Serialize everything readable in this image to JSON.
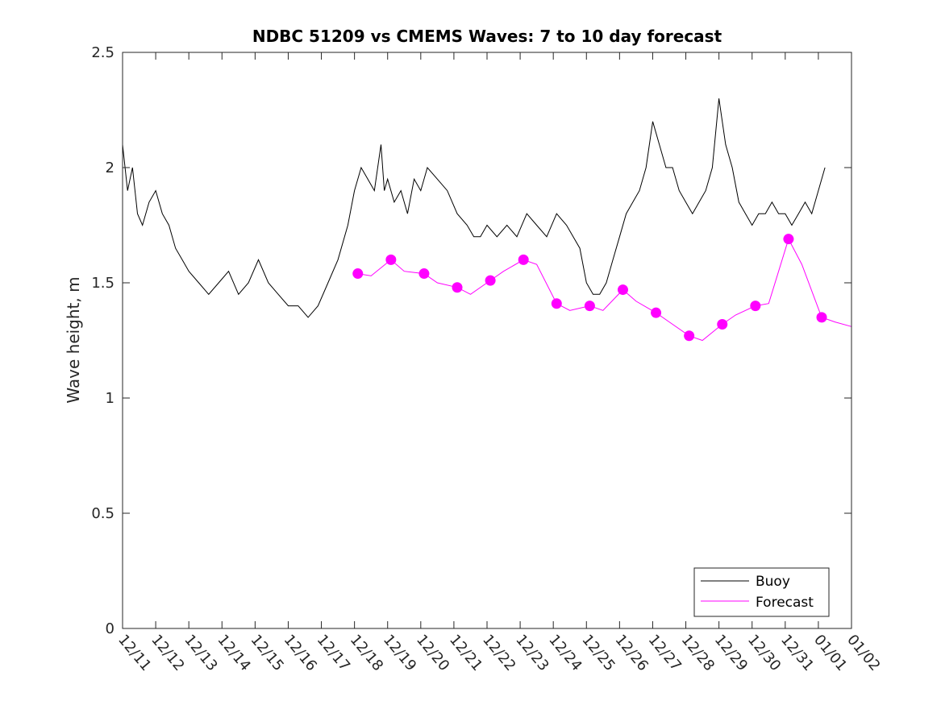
{
  "chart_data": {
    "type": "line",
    "title": "NDBC 51209 vs CMEMS Waves: 7 to 10 day forecast",
    "xlabel": "",
    "ylabel": "Wave height, m",
    "xlim": [
      0,
      22
    ],
    "ylim": [
      0,
      2.5
    ],
    "grid": false,
    "x_tick_labels": [
      "12/11",
      "12/12",
      "12/13",
      "12/14",
      "12/15",
      "12/16",
      "12/17",
      "12/18",
      "12/19",
      "12/20",
      "12/21",
      "12/22",
      "12/23",
      "12/24",
      "12/25",
      "12/26",
      "12/27",
      "12/28",
      "12/29",
      "12/30",
      "12/31",
      "01/01",
      "01/02"
    ],
    "y_ticks": [
      0,
      0.5,
      1,
      1.5,
      2,
      2.5
    ],
    "y_tick_labels": [
      "0",
      "0.5",
      "1",
      "1.5",
      "2",
      "2.5"
    ],
    "legend": {
      "placement": "bottom-right",
      "entries": [
        {
          "label": "Buoy",
          "color": "#000000"
        },
        {
          "label": "Forecast",
          "color": "#ff00ff"
        }
      ]
    },
    "series": [
      {
        "name": "Buoy",
        "color": "#000000",
        "x": [
          0,
          0.15,
          0.3,
          0.45,
          0.6,
          0.8,
          1.0,
          1.2,
          1.4,
          1.6,
          1.8,
          2.0,
          2.3,
          2.6,
          2.9,
          3.2,
          3.5,
          3.8,
          4.1,
          4.4,
          4.7,
          5.0,
          5.3,
          5.6,
          5.9,
          6.2,
          6.5,
          6.8,
          7.0,
          7.2,
          7.4,
          7.6,
          7.8,
          7.9,
          8.0,
          8.2,
          8.4,
          8.6,
          8.8,
          9.0,
          9.2,
          9.5,
          9.8,
          10.1,
          10.4,
          10.6,
          10.8,
          11.0,
          11.3,
          11.6,
          11.9,
          12.2,
          12.5,
          12.8,
          13.1,
          13.4,
          13.6,
          13.8,
          14.0,
          14.2,
          14.4,
          14.6,
          14.8,
          15.0,
          15.2,
          15.4,
          15.6,
          15.8,
          16.0,
          16.2,
          16.4,
          16.6,
          16.8,
          17.0,
          17.2,
          17.4,
          17.6,
          17.8,
          18.0,
          18.2,
          18.4,
          18.6,
          18.8,
          19.0,
          19.2,
          19.4,
          19.6,
          19.8,
          20.0,
          20.2,
          20.4,
          20.6,
          20.8,
          21.0,
          21.2
        ],
        "y": [
          2.1,
          1.9,
          2.0,
          1.8,
          1.75,
          1.85,
          1.9,
          1.8,
          1.75,
          1.65,
          1.6,
          1.55,
          1.5,
          1.45,
          1.5,
          1.55,
          1.45,
          1.5,
          1.6,
          1.5,
          1.45,
          1.4,
          1.4,
          1.35,
          1.4,
          1.5,
          1.6,
          1.75,
          1.9,
          2.0,
          1.95,
          1.9,
          2.1,
          1.9,
          1.95,
          1.85,
          1.9,
          1.8,
          1.95,
          1.9,
          2.0,
          1.95,
          1.9,
          1.8,
          1.75,
          1.7,
          1.7,
          1.75,
          1.7,
          1.75,
          1.7,
          1.8,
          1.75,
          1.7,
          1.8,
          1.75,
          1.7,
          1.65,
          1.5,
          1.45,
          1.45,
          1.5,
          1.6,
          1.7,
          1.8,
          1.85,
          1.9,
          2.0,
          2.2,
          2.1,
          2.0,
          2.0,
          1.9,
          1.85,
          1.8,
          1.85,
          1.9,
          2.0,
          2.3,
          2.1,
          2.0,
          1.85,
          1.8,
          1.75,
          1.8,
          1.8,
          1.85,
          1.8,
          1.8,
          1.75,
          1.8,
          1.85,
          1.8,
          1.9,
          2.0
        ]
      },
      {
        "name": "Forecast",
        "color": "#ff00ff",
        "marker_x": [
          7.1,
          8.1,
          9.1,
          10.1,
          11.1,
          12.1,
          13.1,
          14.1,
          15.1,
          16.1,
          17.1,
          18.1,
          19.1,
          20.1,
          21.1
        ],
        "marker_y": [
          1.54,
          1.6,
          1.54,
          1.48,
          1.51,
          1.6,
          1.41,
          1.4,
          1.47,
          1.37,
          1.27,
          1.32,
          1.4,
          1.69,
          1.35
        ],
        "x": [
          7.1,
          7.5,
          8.1,
          8.5,
          9.1,
          9.5,
          10.1,
          10.5,
          11.1,
          11.5,
          12.1,
          12.5,
          13.1,
          13.5,
          14.1,
          14.5,
          15.1,
          15.5,
          16.1,
          16.5,
          17.1,
          17.5,
          18.1,
          18.5,
          19.1,
          19.5,
          20.1,
          20.5,
          21.1,
          21.5,
          22.0
        ],
        "y": [
          1.54,
          1.53,
          1.6,
          1.55,
          1.54,
          1.5,
          1.48,
          1.45,
          1.51,
          1.55,
          1.6,
          1.58,
          1.41,
          1.38,
          1.4,
          1.38,
          1.47,
          1.42,
          1.37,
          1.33,
          1.27,
          1.25,
          1.32,
          1.36,
          1.4,
          1.41,
          1.69,
          1.58,
          1.35,
          1.33,
          1.31
        ]
      }
    ]
  }
}
